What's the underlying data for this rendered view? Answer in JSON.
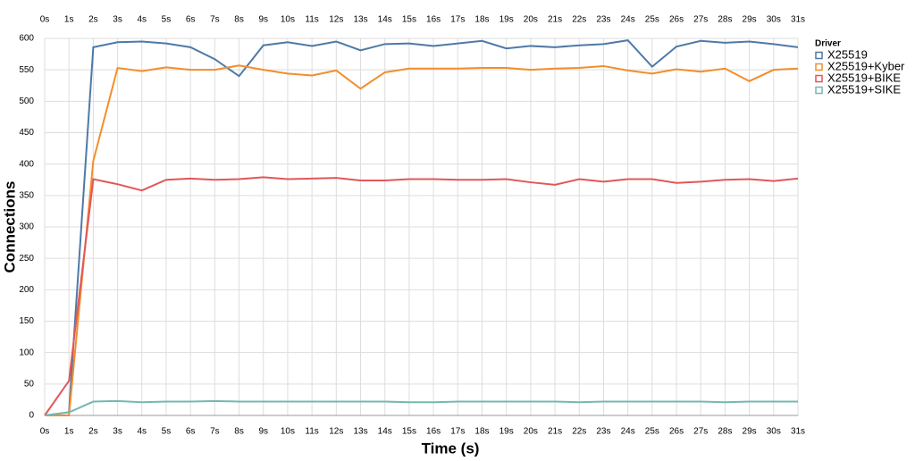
{
  "chart_data": {
    "type": "line",
    "x_label": "Time (s)",
    "y_label": "Connections",
    "legend_title": "Driver",
    "legend": "right",
    "grid": true,
    "x": [
      0,
      1,
      2,
      3,
      4,
      5,
      6,
      7,
      8,
      9,
      10,
      11,
      12,
      13,
      14,
      15,
      16,
      17,
      18,
      19,
      20,
      21,
      22,
      23,
      24,
      25,
      26,
      27,
      28,
      29,
      30,
      31
    ],
    "xlim": [
      0,
      31
    ],
    "xticks": [
      {
        "value": 0,
        "label": "0s"
      },
      {
        "value": 1,
        "label": "1s"
      },
      {
        "value": 2,
        "label": "2s"
      },
      {
        "value": 3,
        "label": "3s"
      },
      {
        "value": 4,
        "label": "4s"
      },
      {
        "value": 5,
        "label": "5s"
      },
      {
        "value": 6,
        "label": "6s"
      },
      {
        "value": 7,
        "label": "7s"
      },
      {
        "value": 8,
        "label": "8s"
      },
      {
        "value": 9,
        "label": "9s"
      },
      {
        "value": 10,
        "label": "10s"
      },
      {
        "value": 11,
        "label": "11s"
      },
      {
        "value": 12,
        "label": "12s"
      },
      {
        "value": 13,
        "label": "13s"
      },
      {
        "value": 14,
        "label": "14s"
      },
      {
        "value": 15,
        "label": "15s"
      },
      {
        "value": 16,
        "label": "16s"
      },
      {
        "value": 17,
        "label": "17s"
      },
      {
        "value": 18,
        "label": "18s"
      },
      {
        "value": 19,
        "label": "19s"
      },
      {
        "value": 20,
        "label": "20s"
      },
      {
        "value": 21,
        "label": "21s"
      },
      {
        "value": 22,
        "label": "22s"
      },
      {
        "value": 23,
        "label": "23s"
      },
      {
        "value": 24,
        "label": "24s"
      },
      {
        "value": 25,
        "label": "25s"
      },
      {
        "value": 26,
        "label": "26s"
      },
      {
        "value": 27,
        "label": "27s"
      },
      {
        "value": 28,
        "label": "28s"
      },
      {
        "value": 29,
        "label": "29s"
      },
      {
        "value": 30,
        "label": "30s"
      },
      {
        "value": 31,
        "label": "31s"
      }
    ],
    "ylim": [
      0,
      600
    ],
    "yticks": [
      0,
      50,
      100,
      150,
      200,
      250,
      300,
      350,
      400,
      450,
      500,
      550,
      600
    ],
    "series": [
      {
        "name": "X25519",
        "color": "#4e79a7",
        "values": [
          0,
          5,
          586,
          594,
          595,
          592,
          586,
          567,
          540,
          589,
          594,
          588,
          595,
          581,
          591,
          592,
          588,
          592,
          596,
          584,
          588,
          586,
          589,
          591,
          597,
          555,
          587,
          596,
          593,
          595,
          591,
          586
        ]
      },
      {
        "name": "X25519+Kyber",
        "color": "#f28e2b",
        "values": [
          0,
          0,
          405,
          553,
          548,
          554,
          550,
          550,
          557,
          550,
          544,
          541,
          549,
          520,
          546,
          552,
          552,
          552,
          553,
          553,
          550,
          552,
          553,
          556,
          549,
          544,
          551,
          547,
          552,
          532,
          550,
          552
        ]
      },
      {
        "name": "X25519+BIKE",
        "color": "#e15759",
        "values": [
          0,
          55,
          376,
          368,
          358,
          375,
          377,
          375,
          376,
          379,
          376,
          377,
          378,
          374,
          374,
          376,
          376,
          375,
          375,
          376,
          371,
          367,
          376,
          372,
          376,
          376,
          370,
          372,
          375,
          376,
          373,
          377
        ]
      },
      {
        "name": "X25519+SIKE",
        "color": "#76b7b2",
        "values": [
          0,
          5,
          22,
          23,
          21,
          22,
          22,
          23,
          22,
          22,
          22,
          22,
          22,
          22,
          22,
          21,
          21,
          22,
          22,
          22,
          22,
          22,
          21,
          22,
          22,
          22,
          22,
          22,
          21,
          22,
          22,
          22
        ]
      }
    ]
  }
}
